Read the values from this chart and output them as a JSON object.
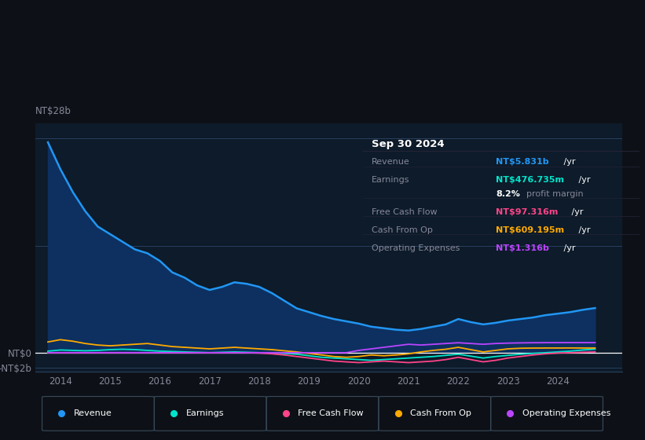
{
  "bg_color": "#0d1117",
  "plot_bg_color": "#0d1b2a",
  "grid_color": "#2a4060",
  "text_color": "#888899",
  "zero_line_color": "#ffffff",
  "ylim": [
    -2500000000,
    30000000000
  ],
  "xlim": [
    2013.5,
    2025.3
  ],
  "xtick_labels": [
    "2014",
    "2015",
    "2016",
    "2017",
    "2018",
    "2019",
    "2020",
    "2021",
    "2022",
    "2023",
    "2024"
  ],
  "xtick_positions": [
    2014,
    2015,
    2016,
    2017,
    2018,
    2019,
    2020,
    2021,
    2022,
    2023,
    2024
  ],
  "series": {
    "Revenue": {
      "color": "#2196f3",
      "fill_color": "#0d3060",
      "x": [
        2013.75,
        2014.0,
        2014.25,
        2014.5,
        2014.75,
        2015.0,
        2015.25,
        2015.5,
        2015.75,
        2016.0,
        2016.25,
        2016.5,
        2016.75,
        2017.0,
        2017.25,
        2017.5,
        2017.75,
        2018.0,
        2018.25,
        2018.5,
        2018.75,
        2019.0,
        2019.25,
        2019.5,
        2019.75,
        2020.0,
        2020.25,
        2020.5,
        2020.75,
        2021.0,
        2021.25,
        2021.5,
        2021.75,
        2022.0,
        2022.25,
        2022.5,
        2022.75,
        2023.0,
        2023.25,
        2023.5,
        2023.75,
        2024.0,
        2024.25,
        2024.5,
        2024.75
      ],
      "y": [
        27500000000,
        24000000000,
        21000000000,
        18500000000,
        16500000000,
        15500000000,
        14500000000,
        13500000000,
        13000000000,
        12000000000,
        10500000000,
        9800000000,
        8800000000,
        8200000000,
        8600000000,
        9200000000,
        9000000000,
        8600000000,
        7800000000,
        6800000000,
        5800000000,
        5300000000,
        4800000000,
        4400000000,
        4100000000,
        3800000000,
        3400000000,
        3200000000,
        3000000000,
        2900000000,
        3100000000,
        3400000000,
        3700000000,
        4400000000,
        4000000000,
        3700000000,
        3900000000,
        4200000000,
        4400000000,
        4600000000,
        4900000000,
        5100000000,
        5300000000,
        5600000000,
        5831000000
      ]
    },
    "Earnings": {
      "color": "#00e5cc",
      "x": [
        2013.75,
        2014.0,
        2014.25,
        2014.5,
        2014.75,
        2015.0,
        2015.25,
        2015.5,
        2015.75,
        2016.0,
        2016.25,
        2016.5,
        2016.75,
        2017.0,
        2017.25,
        2017.5,
        2017.75,
        2018.0,
        2018.25,
        2018.5,
        2018.75,
        2019.0,
        2019.25,
        2019.5,
        2019.75,
        2020.0,
        2020.25,
        2020.5,
        2020.75,
        2021.0,
        2021.25,
        2021.5,
        2021.75,
        2022.0,
        2022.25,
        2022.5,
        2022.75,
        2023.0,
        2023.25,
        2023.5,
        2023.75,
        2024.0,
        2024.25,
        2024.5,
        2024.75
      ],
      "y": [
        200000000,
        350000000,
        300000000,
        250000000,
        300000000,
        400000000,
        450000000,
        400000000,
        300000000,
        200000000,
        150000000,
        100000000,
        50000000,
        0,
        50000000,
        100000000,
        50000000,
        0,
        -50000000,
        -100000000,
        -200000000,
        -400000000,
        -600000000,
        -700000000,
        -800000000,
        -900000000,
        -1000000000,
        -900000000,
        -800000000,
        -700000000,
        -600000000,
        -500000000,
        -350000000,
        -200000000,
        -450000000,
        -700000000,
        -500000000,
        -350000000,
        -200000000,
        -100000000,
        0,
        100000000,
        200000000,
        350000000,
        476735000
      ]
    },
    "FreeCashFlow": {
      "color": "#ff4488",
      "x": [
        2013.75,
        2014.0,
        2014.25,
        2014.5,
        2014.75,
        2015.0,
        2015.25,
        2015.5,
        2015.75,
        2016.0,
        2016.25,
        2016.5,
        2016.75,
        2017.0,
        2017.25,
        2017.5,
        2017.75,
        2018.0,
        2018.25,
        2018.5,
        2018.75,
        2019.0,
        2019.25,
        2019.5,
        2019.75,
        2020.0,
        2020.25,
        2020.5,
        2020.75,
        2021.0,
        2021.25,
        2021.5,
        2021.75,
        2022.0,
        2022.25,
        2022.5,
        2022.75,
        2023.0,
        2023.25,
        2023.5,
        2023.75,
        2024.0,
        2024.25,
        2024.5,
        2024.75
      ],
      "y": [
        0,
        0,
        0,
        0,
        0,
        0,
        0,
        0,
        0,
        0,
        0,
        0,
        0,
        0,
        0,
        0,
        0,
        -50000000,
        -150000000,
        -300000000,
        -500000000,
        -700000000,
        -900000000,
        -1100000000,
        -1200000000,
        -1300000000,
        -1200000000,
        -1100000000,
        -1200000000,
        -1300000000,
        -1200000000,
        -1100000000,
        -900000000,
        -600000000,
        -900000000,
        -1200000000,
        -1000000000,
        -700000000,
        -500000000,
        -300000000,
        -150000000,
        -50000000,
        0,
        50000000,
        97316000
      ]
    },
    "CashFromOp": {
      "color": "#ffaa00",
      "x": [
        2013.75,
        2014.0,
        2014.25,
        2014.5,
        2014.75,
        2015.0,
        2015.25,
        2015.5,
        2015.75,
        2016.0,
        2016.25,
        2016.5,
        2016.75,
        2017.0,
        2017.25,
        2017.5,
        2017.75,
        2018.0,
        2018.25,
        2018.5,
        2018.75,
        2019.0,
        2019.25,
        2019.5,
        2019.75,
        2020.0,
        2020.25,
        2020.5,
        2020.75,
        2021.0,
        2021.25,
        2021.5,
        2021.75,
        2022.0,
        2022.25,
        2022.5,
        2022.75,
        2023.0,
        2023.25,
        2023.5,
        2023.75,
        2024.0,
        2024.25,
        2024.5,
        2024.75
      ],
      "y": [
        1400000000,
        1700000000,
        1500000000,
        1200000000,
        1000000000,
        900000000,
        1000000000,
        1100000000,
        1200000000,
        1000000000,
        800000000,
        700000000,
        600000000,
        500000000,
        600000000,
        700000000,
        600000000,
        500000000,
        400000000,
        250000000,
        100000000,
        -100000000,
        -300000000,
        -500000000,
        -600000000,
        -500000000,
        -300000000,
        -400000000,
        -300000000,
        -150000000,
        100000000,
        300000000,
        450000000,
        700000000,
        400000000,
        100000000,
        300000000,
        500000000,
        580000000,
        600000000,
        610000000,
        610000000,
        615000000,
        610000000,
        609195000
      ]
    },
    "OperatingExpenses": {
      "color": "#bb44ff",
      "x": [
        2013.75,
        2014.0,
        2014.25,
        2014.5,
        2014.75,
        2015.0,
        2015.25,
        2015.5,
        2015.75,
        2016.0,
        2016.25,
        2016.5,
        2016.75,
        2017.0,
        2017.25,
        2017.5,
        2017.75,
        2018.0,
        2018.25,
        2018.5,
        2018.75,
        2019.0,
        2019.25,
        2019.5,
        2019.75,
        2020.0,
        2020.25,
        2020.5,
        2020.75,
        2021.0,
        2021.25,
        2021.5,
        2021.75,
        2022.0,
        2022.25,
        2022.5,
        2022.75,
        2023.0,
        2023.25,
        2023.5,
        2023.75,
        2024.0,
        2024.25,
        2024.5,
        2024.75
      ],
      "y": [
        0,
        0,
        0,
        0,
        0,
        0,
        0,
        0,
        0,
        0,
        0,
        0,
        0,
        0,
        0,
        0,
        0,
        0,
        0,
        0,
        0,
        0,
        0,
        0,
        0,
        300000000,
        500000000,
        700000000,
        900000000,
        1100000000,
        1000000000,
        1100000000,
        1200000000,
        1300000000,
        1200000000,
        1100000000,
        1200000000,
        1250000000,
        1280000000,
        1300000000,
        1310000000,
        1315000000,
        1316000000,
        1316000000,
        1316000000
      ]
    }
  },
  "info_box": {
    "date": "Sep 30 2024",
    "rows": [
      {
        "label": "Revenue",
        "value": "NT$5.831b",
        "value_color": "#2196f3",
        "unit": " /yr",
        "extra": null
      },
      {
        "label": "Earnings",
        "value": "NT$476.735m",
        "value_color": "#00e5cc",
        "unit": " /yr",
        "extra": "8.2% profit margin"
      },
      {
        "label": "Free Cash Flow",
        "value": "NT$97.316m",
        "value_color": "#ff4488",
        "unit": " /yr",
        "extra": null
      },
      {
        "label": "Cash From Op",
        "value": "NT$609.195m",
        "value_color": "#ffaa00",
        "unit": " /yr",
        "extra": null
      },
      {
        "label": "Operating Expenses",
        "value": "NT$1.316b",
        "value_color": "#bb44ff",
        "unit": " /yr",
        "extra": null
      }
    ]
  },
  "legend_items": [
    {
      "label": "Revenue",
      "color": "#2196f3"
    },
    {
      "label": "Earnings",
      "color": "#00e5cc"
    },
    {
      "label": "Free Cash Flow",
      "color": "#ff4488"
    },
    {
      "label": "Cash From Op",
      "color": "#ffaa00"
    },
    {
      "label": "Operating Expenses",
      "color": "#bb44ff"
    }
  ]
}
